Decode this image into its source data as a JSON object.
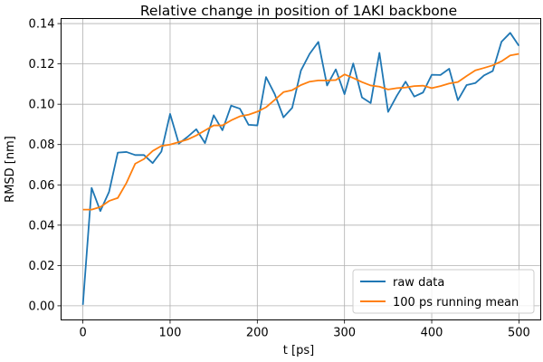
{
  "chart_data": {
    "type": "line",
    "title": "Relative change in position of 1AKI backbone",
    "xlabel": "t [ps]",
    "ylabel": "RMSD [nm]",
    "xlim": [
      -25,
      525
    ],
    "ylim": [
      -0.007,
      0.1425
    ],
    "xticks": [
      0,
      100,
      200,
      300,
      400,
      500
    ],
    "yticks": [
      0.0,
      0.02,
      0.04,
      0.06,
      0.08,
      0.1,
      0.12,
      0.14
    ],
    "ytick_labels": [
      "0.00",
      "0.02",
      "0.04",
      "0.06",
      "0.08",
      "0.10",
      "0.12",
      "0.14"
    ],
    "grid": true,
    "legend_position": "lower-right",
    "x": [
      0,
      10,
      20,
      30,
      40,
      50,
      60,
      70,
      80,
      90,
      100,
      110,
      120,
      130,
      140,
      150,
      160,
      170,
      180,
      190,
      200,
      210,
      220,
      230,
      240,
      250,
      260,
      270,
      280,
      290,
      300,
      310,
      320,
      330,
      340,
      350,
      360,
      370,
      380,
      390,
      400,
      410,
      420,
      430,
      440,
      450,
      460,
      470,
      480,
      490,
      500
    ],
    "series": [
      {
        "name": "raw data",
        "color": "#1f77b4",
        "values": [
          0.0005,
          0.0585,
          0.047,
          0.0565,
          0.076,
          0.0763,
          0.0748,
          0.0748,
          0.0708,
          0.0765,
          0.0952,
          0.0805,
          0.0838,
          0.0876,
          0.0807,
          0.0945,
          0.0871,
          0.0993,
          0.0978,
          0.0898,
          0.0895,
          0.1135,
          0.105,
          0.0935,
          0.0982,
          0.1167,
          0.125,
          0.1309,
          0.1093,
          0.1173,
          0.105,
          0.1202,
          0.1034,
          0.1006,
          0.1255,
          0.0962,
          0.1042,
          0.1112,
          0.1038,
          0.1058,
          0.1146,
          0.1145,
          0.1176,
          0.102,
          0.1095,
          0.1105,
          0.1143,
          0.1165,
          0.131,
          0.1354,
          0.129
        ]
      },
      {
        "name": "100 ps running mean",
        "color": "#ff7f0e",
        "values": [
          0.0477,
          0.0477,
          0.049,
          0.052,
          0.0535,
          0.061,
          0.0705,
          0.0728,
          0.0768,
          0.0793,
          0.08,
          0.0812,
          0.0825,
          0.0845,
          0.087,
          0.0895,
          0.0895,
          0.092,
          0.094,
          0.0948,
          0.0963,
          0.0985,
          0.1022,
          0.106,
          0.107,
          0.1095,
          0.1112,
          0.1118,
          0.1118,
          0.112,
          0.1148,
          0.113,
          0.111,
          0.1093,
          0.1087,
          0.1073,
          0.108,
          0.1083,
          0.109,
          0.1092,
          0.108,
          0.109,
          0.1103,
          0.111,
          0.114,
          0.1168,
          0.118,
          0.1193,
          0.1213,
          0.1242,
          0.125
        ]
      }
    ]
  }
}
